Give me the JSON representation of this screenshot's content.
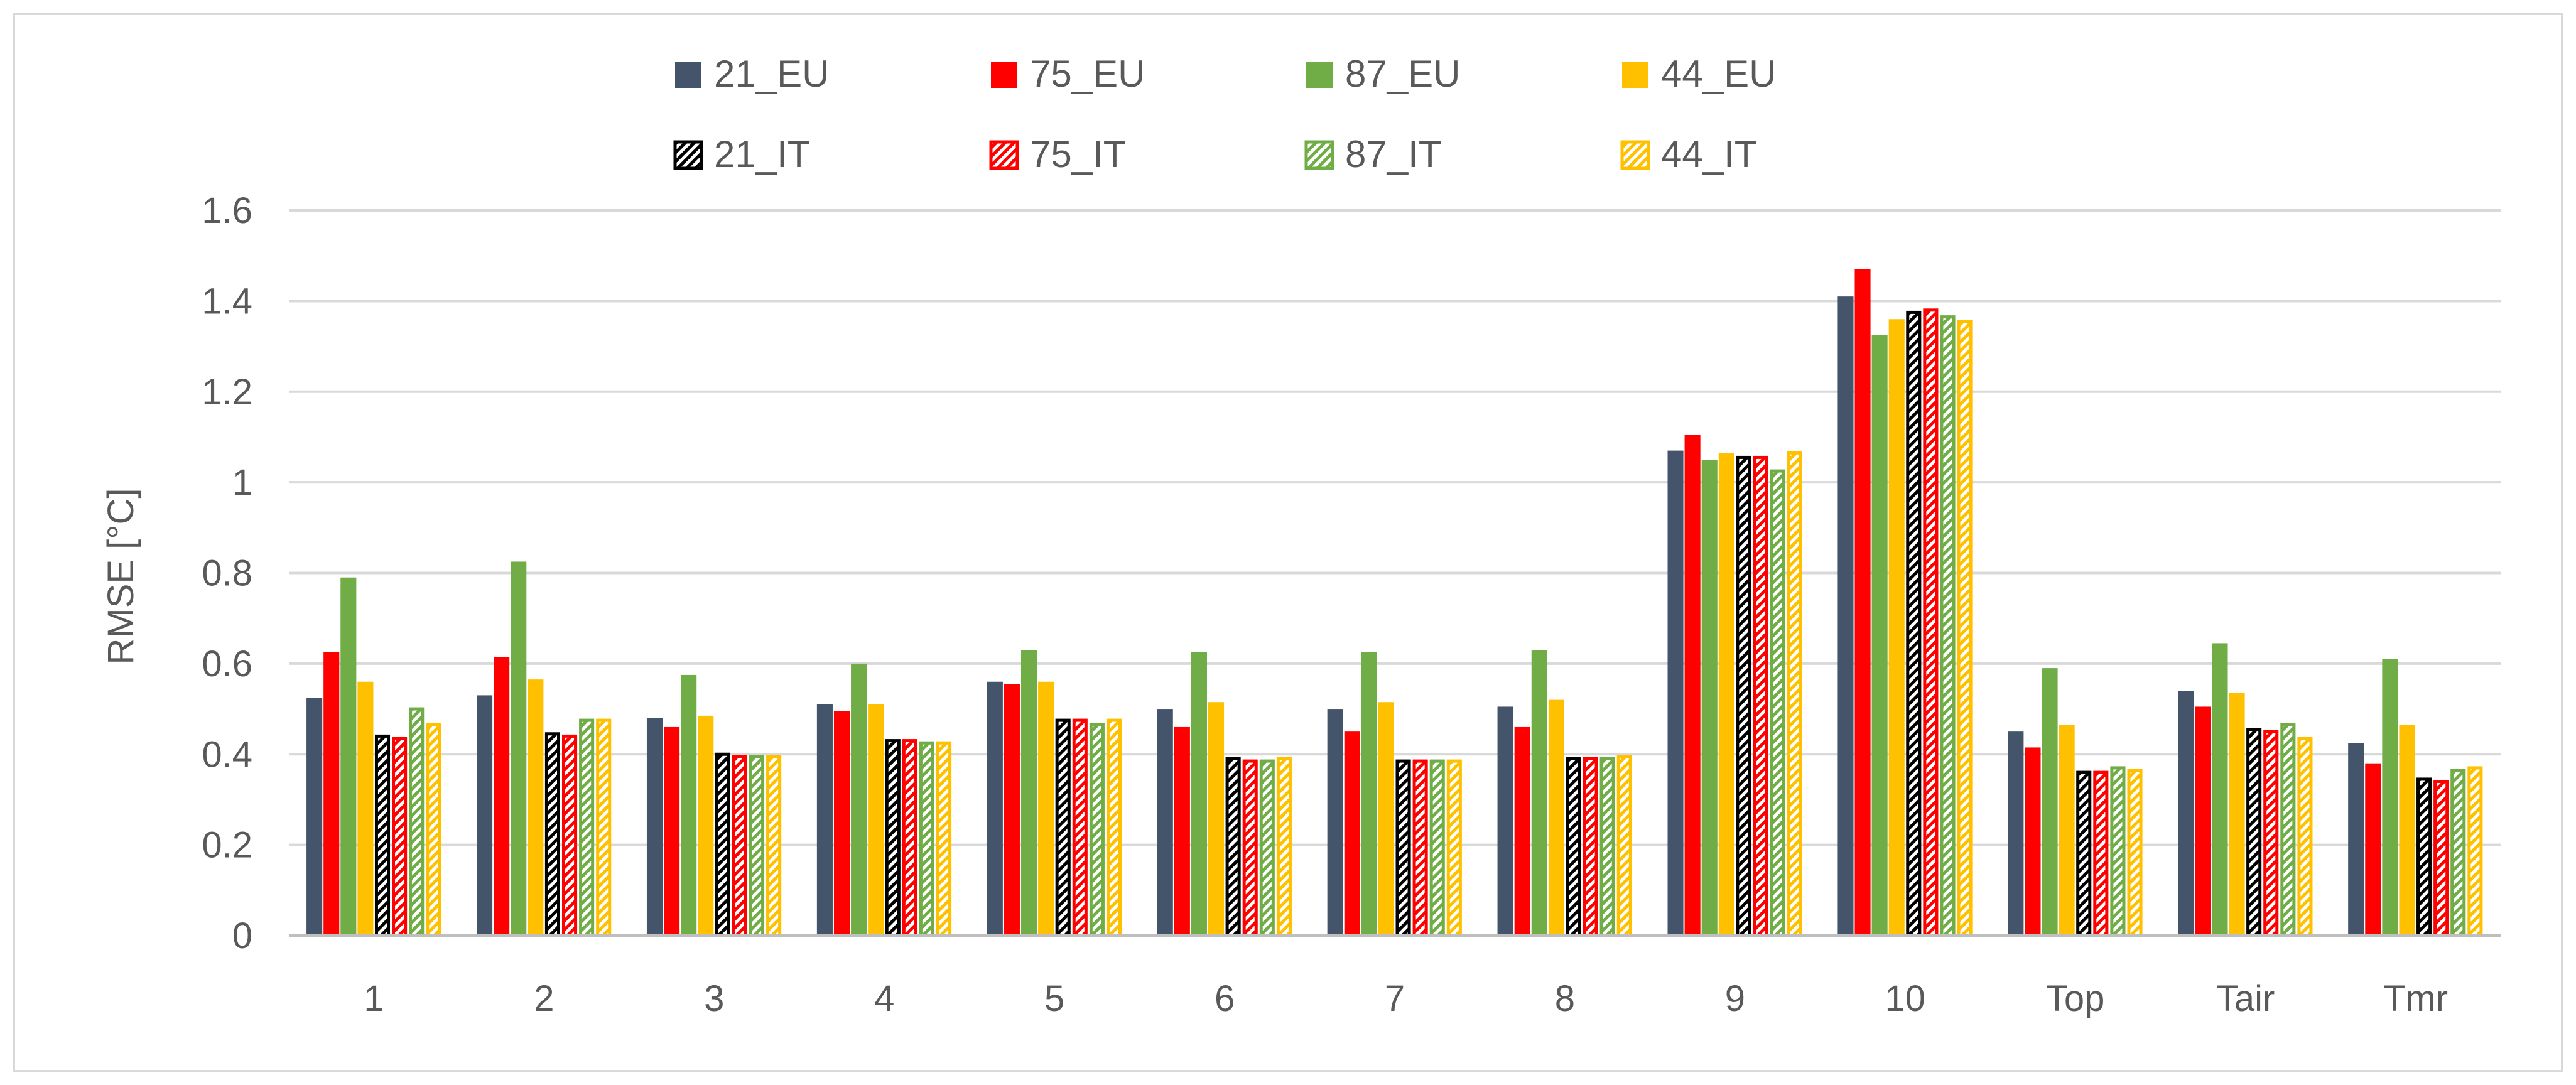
{
  "chart_data": {
    "type": "bar",
    "title": "",
    "xlabel": "",
    "ylabel": "RMSE [°C]",
    "ylim": [
      0,
      1.6
    ],
    "yticks": [
      0,
      0.2,
      0.4,
      0.6,
      0.8,
      1,
      1.2,
      1.4,
      1.6
    ],
    "ytick_labels": [
      "0",
      "0.2",
      "0.4",
      "0.6",
      "0.8",
      "1",
      "1.2",
      "1.4",
      "1.6"
    ],
    "grid": true,
    "legend_position": "top",
    "categories": [
      "1",
      "2",
      "3",
      "4",
      "5",
      "6",
      "7",
      "8",
      "9",
      "10",
      "Top",
      "Tair",
      "Tmr"
    ],
    "series": [
      {
        "name": "21_EU",
        "color": "#44546a",
        "pattern": "solid",
        "values": [
          0.525,
          0.53,
          0.48,
          0.51,
          0.56,
          0.5,
          0.5,
          0.505,
          1.07,
          1.41,
          0.45,
          0.54,
          0.425
        ]
      },
      {
        "name": "75_EU",
        "color": "#ff0000",
        "pattern": "solid",
        "values": [
          0.625,
          0.615,
          0.46,
          0.495,
          0.555,
          0.46,
          0.45,
          0.46,
          1.105,
          1.47,
          0.415,
          0.505,
          0.38
        ]
      },
      {
        "name": "87_EU",
        "color": "#70ad47",
        "pattern": "solid",
        "values": [
          0.79,
          0.825,
          0.575,
          0.6,
          0.63,
          0.625,
          0.625,
          0.63,
          1.05,
          1.325,
          0.59,
          0.645,
          0.61
        ]
      },
      {
        "name": "44_EU",
        "color": "#ffc000",
        "pattern": "solid",
        "values": [
          0.56,
          0.565,
          0.485,
          0.51,
          0.56,
          0.515,
          0.515,
          0.52,
          1.065,
          1.36,
          0.465,
          0.535,
          0.465
        ]
      },
      {
        "name": "21_IT",
        "color": "#000000",
        "pattern": "hatched",
        "values": [
          0.44,
          0.445,
          0.4,
          0.43,
          0.475,
          0.39,
          0.385,
          0.39,
          1.055,
          1.375,
          0.36,
          0.455,
          0.345
        ]
      },
      {
        "name": "75_IT",
        "color": "#ff0000",
        "pattern": "hatched",
        "values": [
          0.435,
          0.44,
          0.395,
          0.43,
          0.475,
          0.385,
          0.385,
          0.39,
          1.055,
          1.38,
          0.36,
          0.45,
          0.34
        ]
      },
      {
        "name": "87_IT",
        "color": "#70ad47",
        "pattern": "hatched",
        "values": [
          0.5,
          0.475,
          0.395,
          0.425,
          0.465,
          0.385,
          0.385,
          0.39,
          1.025,
          1.365,
          0.37,
          0.465,
          0.365
        ]
      },
      {
        "name": "44_IT",
        "color": "#ffc000",
        "pattern": "hatched",
        "values": [
          0.465,
          0.475,
          0.395,
          0.425,
          0.475,
          0.39,
          0.385,
          0.395,
          1.065,
          1.355,
          0.365,
          0.435,
          0.37
        ]
      }
    ]
  }
}
